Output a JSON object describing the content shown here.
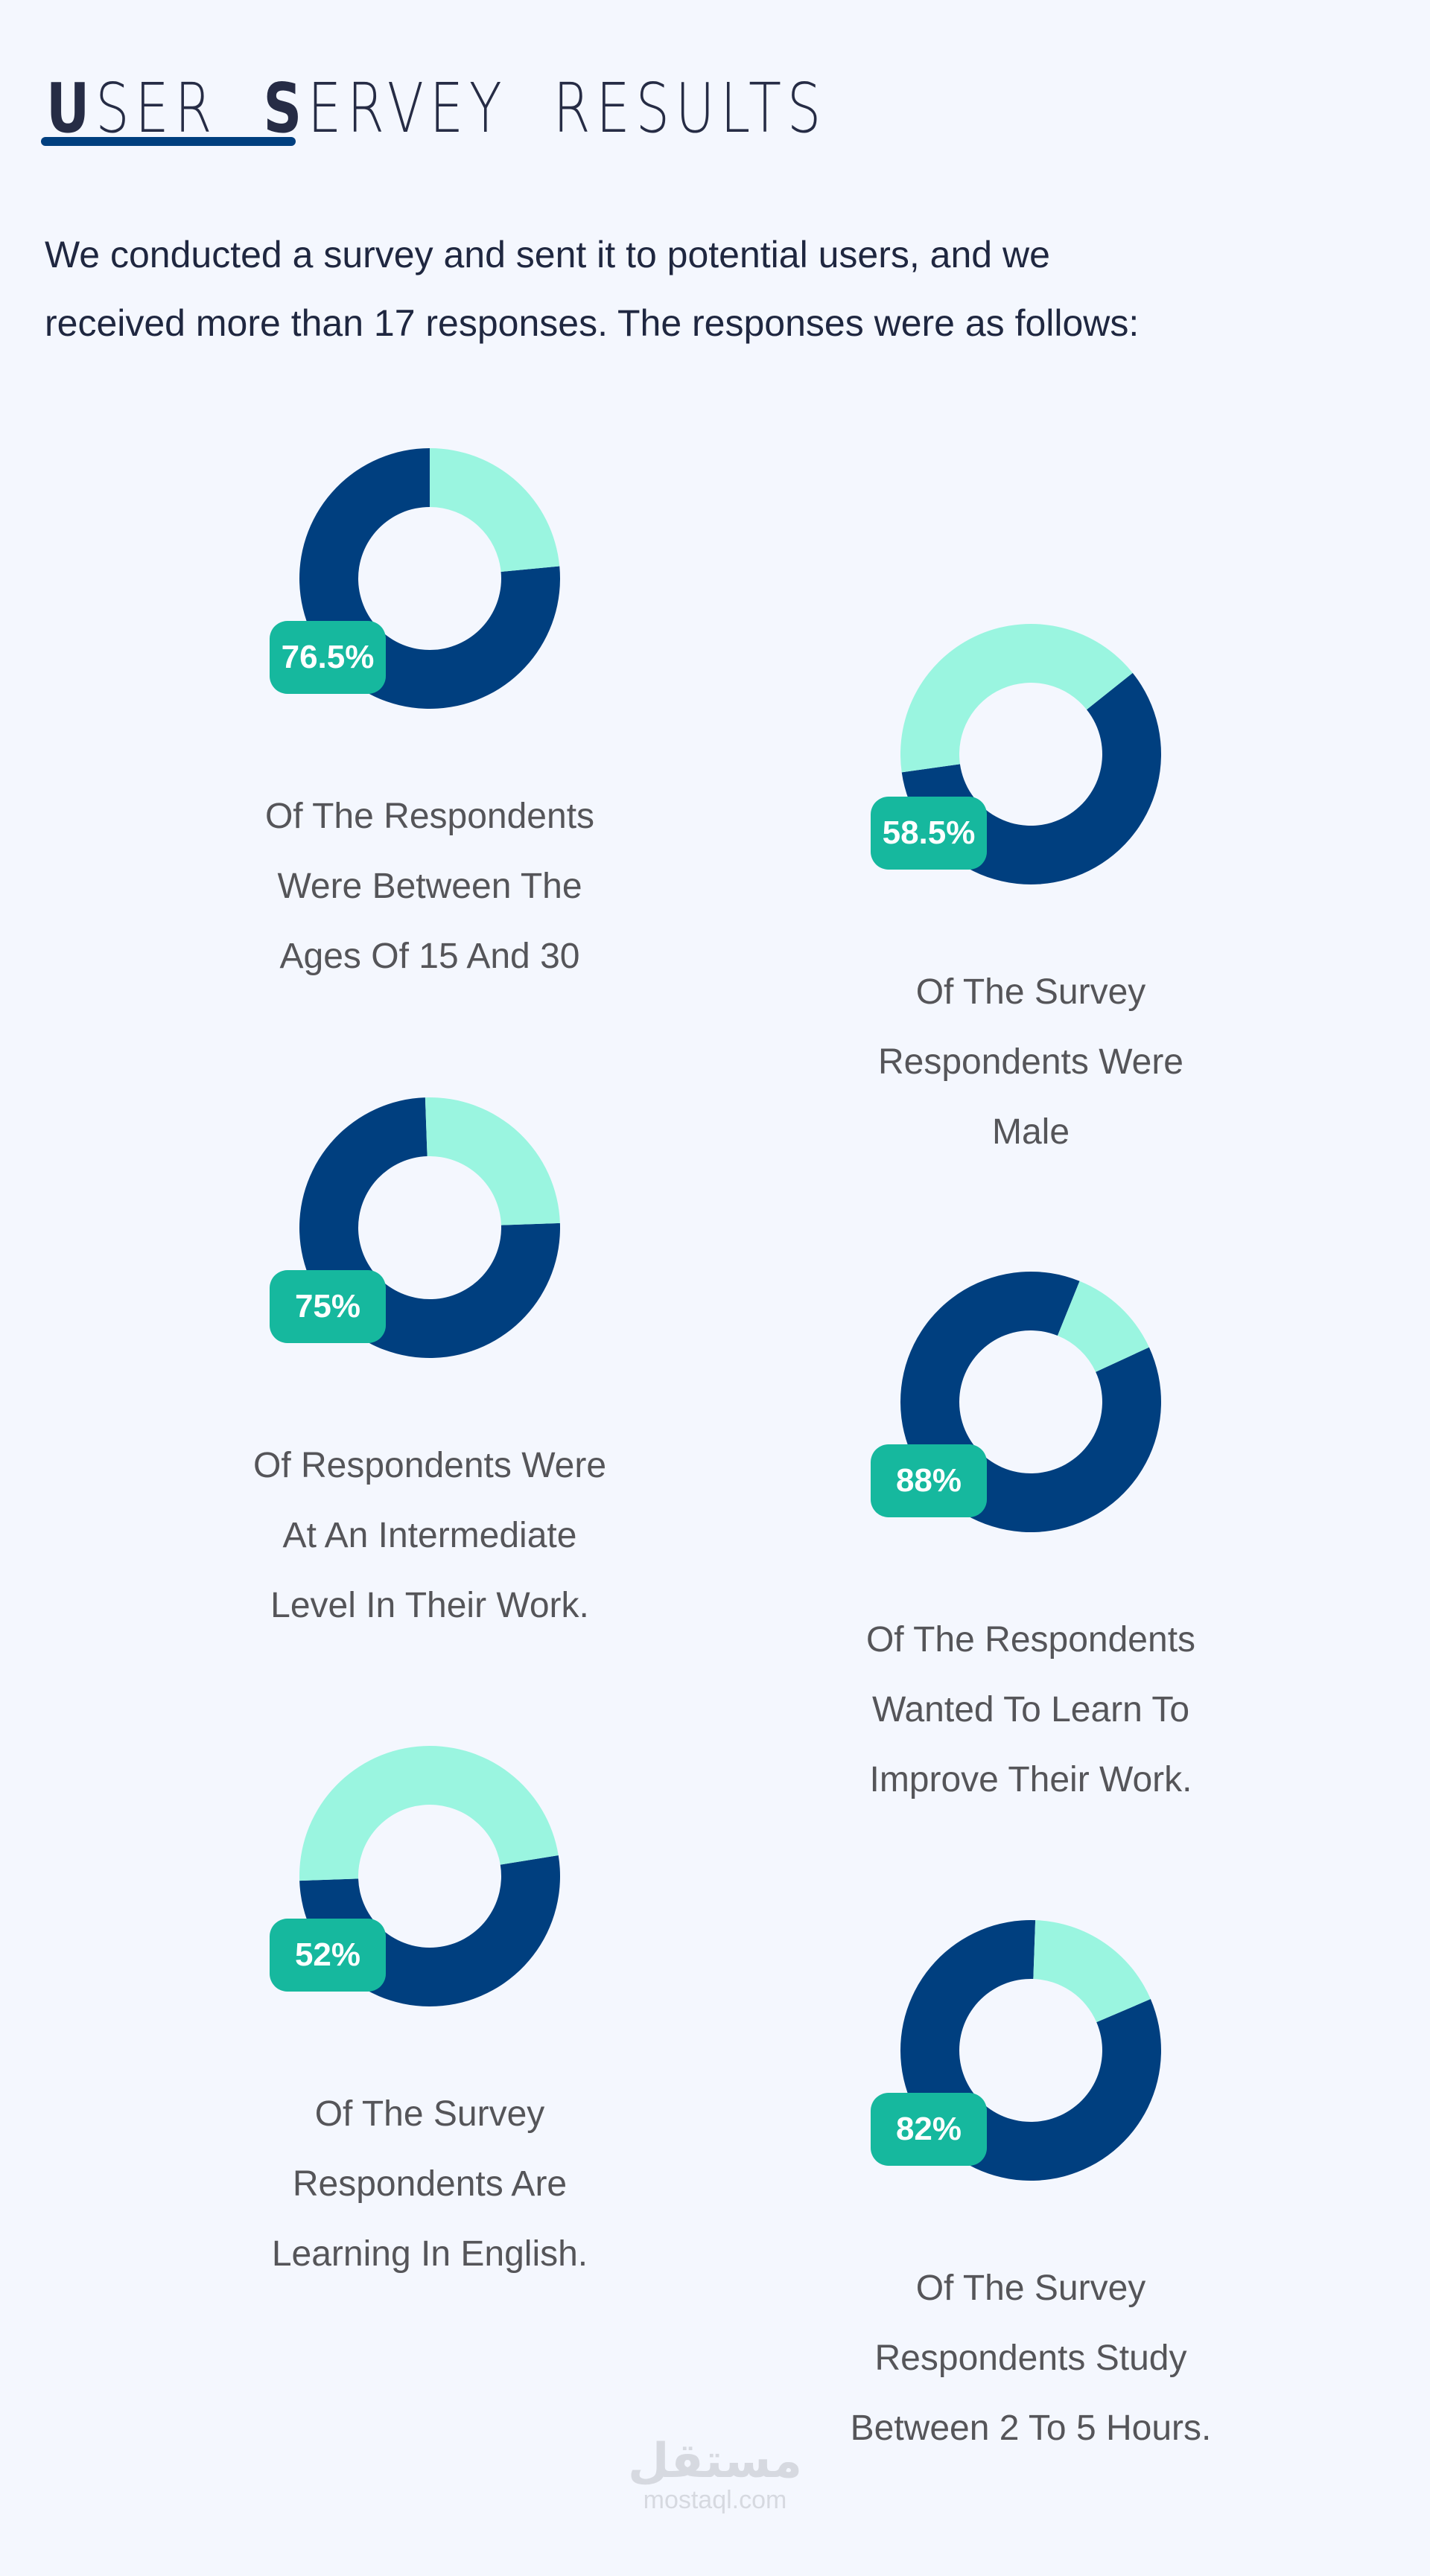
{
  "header": {
    "title_words": [
      {
        "first": "U",
        "rest": "SER"
      },
      {
        "first": "S",
        "rest": "ERVEY"
      },
      {
        "first": "R",
        "rest": "ESULTS"
      }
    ]
  },
  "intro": {
    "line1": "We conducted a survey and sent it to potential users, and we",
    "line2": "received more than 17 responses. The responses were as follows:"
  },
  "colors": {
    "primary": "#003f7f",
    "remainder": "#9af5e0",
    "badge": "#16b89e",
    "background": "#f4f7fe"
  },
  "chart_data": [
    {
      "type": "pie",
      "label": "76.5%",
      "value": 76.5,
      "caption": [
        "Of The Respondents",
        "Were Between The",
        "Ages Of 15 And 30"
      ]
    },
    {
      "type": "pie",
      "label": "58.5%",
      "value": 58.5,
      "caption": [
        "Of The Survey",
        "Respondents Were",
        "Male"
      ]
    },
    {
      "type": "pie",
      "label": "75%",
      "value": 75,
      "caption": [
        "Of Respondents Were",
        "At An Intermediate",
        "Level In Their Work."
      ]
    },
    {
      "type": "pie",
      "label": "88%",
      "value": 88,
      "caption": [
        "Of The Respondents",
        "Wanted To Learn To",
        "Improve Their Work."
      ]
    },
    {
      "type": "pie",
      "label": "52%",
      "value": 52,
      "caption": [
        "Of The Survey",
        "Respondents Are",
        "Learning In English."
      ]
    },
    {
      "type": "pie",
      "label": "82%",
      "value": 82,
      "caption": [
        "Of The Survey",
        "Respondents Study",
        "Between 2 To 5 Hours."
      ]
    }
  ],
  "watermark": {
    "arabic": "مستقل",
    "latin": "mostaql.com"
  }
}
